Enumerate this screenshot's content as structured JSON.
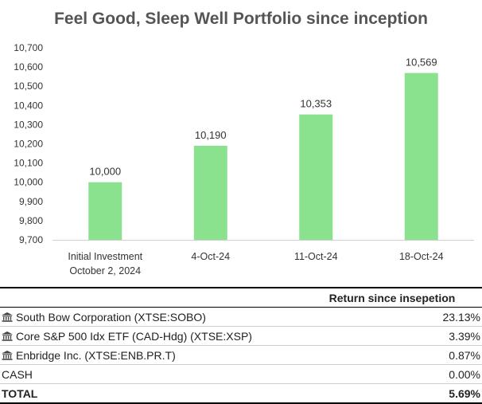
{
  "chart_data": {
    "type": "bar",
    "title": "Feel Good, Sleep Well Portfolio since inception",
    "categories": [
      [
        "Initial Investment",
        "October 2, 2024"
      ],
      [
        "4-Oct-24"
      ],
      [
        "11-Oct-24"
      ],
      [
        "18-Oct-24"
      ]
    ],
    "values": [
      10000,
      10190,
      10353,
      10569
    ],
    "data_labels": [
      "10,000",
      "10,190",
      "10,353",
      "10,569"
    ],
    "ylim": [
      9700,
      10700
    ],
    "yticks": [
      9700,
      9800,
      9900,
      10000,
      10100,
      10200,
      10300,
      10400,
      10500,
      10600,
      10700
    ],
    "ytick_labels": [
      "9,700",
      "9,800",
      "9,900",
      "10,000",
      "10,100",
      "10,200",
      "10,300",
      "10,400",
      "10,500",
      "10,600",
      "10,700"
    ],
    "grid": false,
    "bar_color": "#8ae28f"
  },
  "table": {
    "header": "Return since insepetion",
    "rows": [
      {
        "name": "South Bow Corporation (XTSE:SOBO)",
        "icon": "bank-icon",
        "value": "23.13%"
      },
      {
        "name": "Core S&P 500 Idx ETF (CAD-Hdg) (XTSE:XSP)",
        "icon": "bank-icon",
        "value": "3.39%"
      },
      {
        "name": "Enbridge Inc. (XTSE:ENB.PR.T)",
        "icon": "bank-icon",
        "value": "0.87%"
      },
      {
        "name": "CASH",
        "icon": "",
        "value": "0.00%"
      }
    ],
    "total": {
      "name": "TOTAL",
      "value": "5.69%"
    }
  }
}
